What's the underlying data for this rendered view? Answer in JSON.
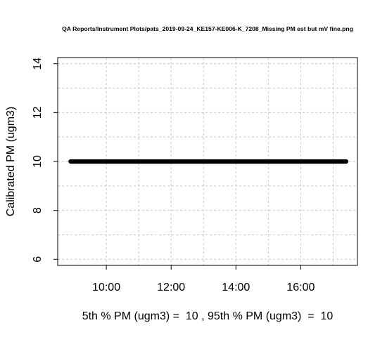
{
  "chart_data": {
    "type": "scatter",
    "title": "QA Reports/Instrument Plots/pats_2019-09-24_KE157-KE006-K_7208_Missing PM est but mV fine.png",
    "ylabel": "Calibrated PM (ugm3)",
    "xlabel": "5th % PM (ugm3) =  10 , 95th % PM (ugm3)  =  10",
    "x_range": [
      "08:54",
      "17:24"
    ],
    "xlim": [
      "08:30",
      "17:45"
    ],
    "ylim": [
      5.75,
      14.25
    ],
    "x_ticks": [
      "10:00",
      "12:00",
      "14:00",
      "16:00"
    ],
    "y_ticks": [
      6,
      8,
      10,
      12,
      14
    ],
    "y_value": 10,
    "grid": true
  }
}
